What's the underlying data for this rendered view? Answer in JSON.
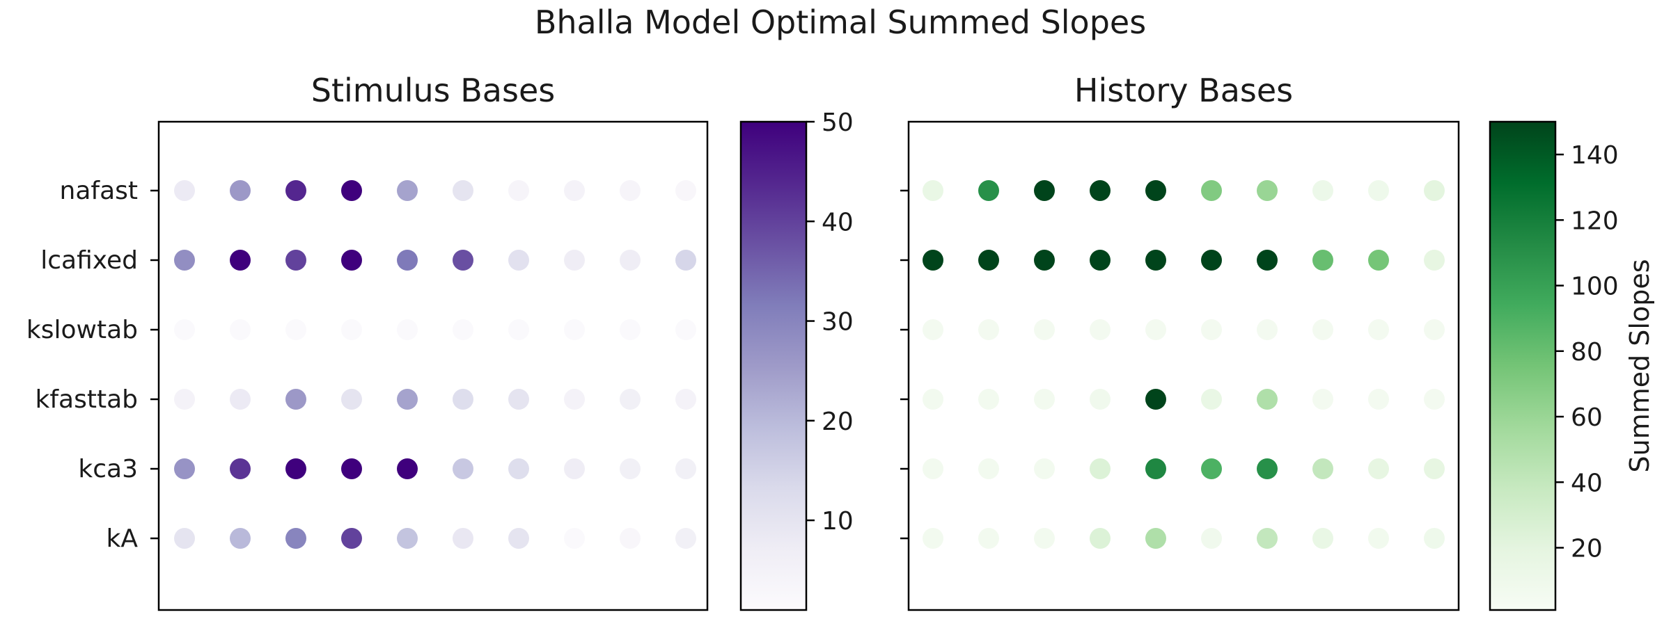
{
  "chart_data": {
    "type": "scatter",
    "title": "Bhalla Model Optimal Summed Slopes",
    "rows": [
      "nafast",
      "lcafixed",
      "kslowtab",
      "kfasttab",
      "kca3",
      "kA"
    ],
    "panels": [
      {
        "title": "Stimulus Bases",
        "colormap": "Purples",
        "colorbar_range": [
          1,
          50
        ],
        "colorbar_ticks": [
          "50",
          "40",
          "30",
          "20",
          "10"
        ],
        "colorbar_tick_values": [
          50,
          40,
          30,
          20,
          10
        ],
        "colorbar_label": "",
        "values": [
          [
            8,
            26,
            44,
            50,
            24,
            10,
            4,
            5,
            4,
            3
          ],
          [
            28,
            50,
            40,
            50,
            32,
            38,
            11,
            7,
            7,
            14
          ],
          [
            2,
            2,
            2,
            2,
            2,
            2,
            2,
            2,
            2,
            2
          ],
          [
            5,
            8,
            26,
            10,
            24,
            12,
            10,
            5,
            6,
            5
          ],
          [
            27,
            42,
            50,
            50,
            50,
            17,
            12,
            7,
            6,
            6
          ],
          [
            10,
            20,
            30,
            40,
            18,
            9,
            10,
            2,
            3,
            6
          ]
        ]
      },
      {
        "title": "History Bases",
        "colormap": "Greens",
        "colorbar_range": [
          1,
          150
        ],
        "colorbar_ticks": [
          "140",
          "120",
          "100",
          "80",
          "60",
          "40",
          "20"
        ],
        "colorbar_tick_values": [
          140,
          120,
          100,
          80,
          60,
          40,
          20
        ],
        "colorbar_label": "Summed Slopes",
        "values": [
          [
            15,
            110,
            150,
            150,
            150,
            70,
            60,
            12,
            10,
            20
          ],
          [
            150,
            150,
            150,
            150,
            150,
            150,
            150,
            80,
            75,
            18
          ],
          [
            5,
            5,
            5,
            5,
            5,
            5,
            5,
            5,
            5,
            5
          ],
          [
            6,
            6,
            6,
            8,
            150,
            15,
            50,
            5,
            5,
            5
          ],
          [
            6,
            6,
            6,
            25,
            115,
            90,
            110,
            40,
            18,
            18
          ],
          [
            6,
            6,
            6,
            25,
            50,
            8,
            40,
            15,
            7,
            10
          ]
        ]
      }
    ]
  }
}
